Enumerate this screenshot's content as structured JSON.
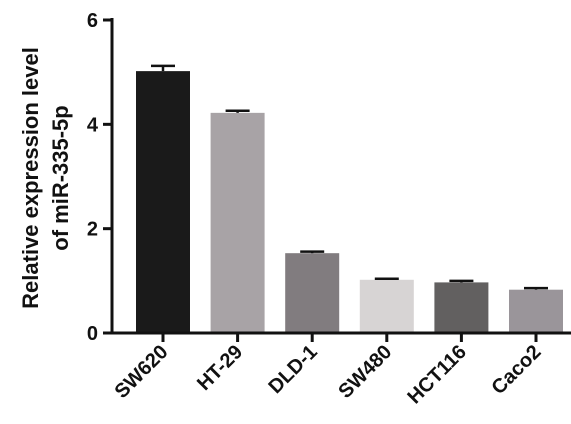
{
  "chart_data": {
    "type": "bar",
    "title": "",
    "xlabel": "",
    "ylabel_lines": [
      "Relative expression level",
      "of miR-335-5p"
    ],
    "ylim": [
      0,
      6
    ],
    "yticks": [
      "0",
      "2",
      "4",
      "6"
    ],
    "grid": false,
    "legend": "none",
    "categories": [
      "SW620",
      "HT-29",
      "DLD-1",
      "SW480",
      "HCT116",
      "Caco2"
    ],
    "values": [
      5.02,
      4.22,
      1.53,
      1.02,
      0.97,
      0.83
    ],
    "errors": [
      0.1,
      0.04,
      0.03,
      0.02,
      0.03,
      0.03
    ],
    "colors": [
      "#1a1a1a",
      "#a8a3a6",
      "#817c7f",
      "#d7d4d4",
      "#626060",
      "#9a959a"
    ]
  }
}
